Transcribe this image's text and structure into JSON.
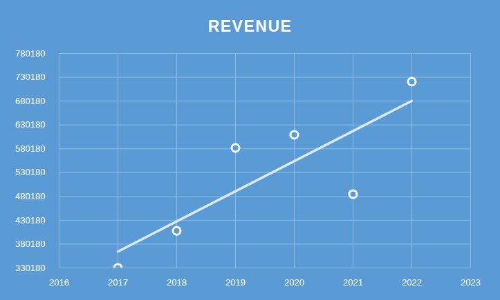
{
  "chart_data": {
    "type": "scatter",
    "title": "REVENUE",
    "x": [
      2017,
      2018,
      2019,
      2020,
      2021,
      2022
    ],
    "values": [
      330180,
      408000,
      582000,
      609500,
      485000,
      721000
    ],
    "color": "#ffffff",
    "marker": "circle",
    "trendline": {
      "x": [
        2017,
        2022
      ],
      "values": [
        364570,
        680656
      ],
      "color": "#dde9f6"
    },
    "xlim": [
      2016,
      2023
    ],
    "xticks": [
      2016,
      2017,
      2018,
      2019,
      2020,
      2021,
      2022,
      2023
    ],
    "ylim": [
      330180,
      780180
    ],
    "yticks": [
      330180,
      380180,
      430180,
      480180,
      530180,
      580180,
      630180,
      680180,
      730180,
      780180
    ],
    "grid": true
  }
}
